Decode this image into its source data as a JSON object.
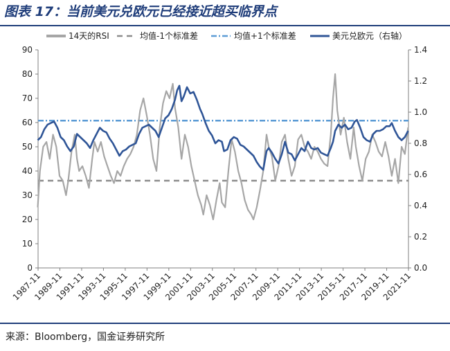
{
  "title": "图表 17：当前美元兑欧元已经接近超买临界点",
  "source": "来源：Bloomberg，国金证券研究所",
  "colors": {
    "rsi": "#a6a6a6",
    "mean_minus": "#8c8c8c",
    "mean_plus": "#5b9bd5",
    "usdeur": "#2f5597",
    "rule": "#1f3d7a"
  },
  "chart_data": {
    "type": "line",
    "x_tick_labels": [
      "1987-11",
      "1989-11",
      "1991-11",
      "1993-11",
      "1995-11",
      "1997-11",
      "1999-11",
      "2001-11",
      "2003-11",
      "2005-11",
      "2007-11",
      "2009-11",
      "2011-11",
      "2013-11",
      "2015-11",
      "2017-11",
      "2019-11",
      "2021-11"
    ],
    "x_range": [
      1987.83,
      2021.83
    ],
    "y_left": {
      "min": 0,
      "max": 90,
      "ticks": [
        0,
        10,
        20,
        30,
        40,
        50,
        60,
        70,
        80,
        90
      ]
    },
    "y_right": {
      "min": 0.0,
      "max": 1.4,
      "ticks": [
        "0.0",
        "0.2",
        "0.4",
        "0.6",
        "0.8",
        "1.0",
        "1.2",
        "1.4"
      ]
    },
    "legend": {
      "rsi": "14天的RSI",
      "mean_minus": "均值-1个标准差",
      "mean_plus": "均值+1个标准差",
      "usdeur": "美元兑欧元（右轴）"
    },
    "series": [
      {
        "name": "14天的RSI",
        "axis": "left",
        "points": [
          [
            1987.8,
            25
          ],
          [
            1988.0,
            40
          ],
          [
            1988.3,
            50
          ],
          [
            1988.6,
            52
          ],
          [
            1988.9,
            45
          ],
          [
            1989.2,
            55
          ],
          [
            1989.5,
            50
          ],
          [
            1989.8,
            38
          ],
          [
            1990.1,
            36
          ],
          [
            1990.4,
            30
          ],
          [
            1990.6,
            36
          ],
          [
            1990.9,
            48
          ],
          [
            1991.2,
            55
          ],
          [
            1991.4,
            45
          ],
          [
            1991.6,
            40
          ],
          [
            1991.9,
            42
          ],
          [
            1992.2,
            38
          ],
          [
            1992.5,
            33
          ],
          [
            1992.8,
            45
          ],
          [
            1993.0,
            52
          ],
          [
            1993.3,
            48
          ],
          [
            1993.6,
            52
          ],
          [
            1993.9,
            46
          ],
          [
            1994.2,
            42
          ],
          [
            1994.5,
            38
          ],
          [
            1994.8,
            35
          ],
          [
            1995.1,
            40
          ],
          [
            1995.4,
            38
          ],
          [
            1995.7,
            42
          ],
          [
            1996.0,
            45
          ],
          [
            1996.3,
            47
          ],
          [
            1996.6,
            50
          ],
          [
            1996.9,
            55
          ],
          [
            1997.2,
            65
          ],
          [
            1997.5,
            70
          ],
          [
            1997.8,
            63
          ],
          [
            1998.1,
            55
          ],
          [
            1998.4,
            45
          ],
          [
            1998.7,
            40
          ],
          [
            1999.0,
            58
          ],
          [
            1999.3,
            68
          ],
          [
            1999.6,
            73
          ],
          [
            1999.9,
            70
          ],
          [
            2000.2,
            76
          ],
          [
            2000.4,
            66
          ],
          [
            2000.7,
            58
          ],
          [
            2001.0,
            45
          ],
          [
            2001.3,
            55
          ],
          [
            2001.6,
            50
          ],
          [
            2001.9,
            42
          ],
          [
            2002.2,
            36
          ],
          [
            2002.5,
            30
          ],
          [
            2002.8,
            26
          ],
          [
            2003.0,
            22
          ],
          [
            2003.3,
            30
          ],
          [
            2003.6,
            26
          ],
          [
            2003.9,
            20
          ],
          [
            2004.2,
            28
          ],
          [
            2004.5,
            35
          ],
          [
            2004.7,
            27
          ],
          [
            2005.0,
            25
          ],
          [
            2005.3,
            40
          ],
          [
            2005.6,
            53
          ],
          [
            2005.9,
            48
          ],
          [
            2006.2,
            40
          ],
          [
            2006.5,
            35
          ],
          [
            2006.8,
            28
          ],
          [
            2007.1,
            24
          ],
          [
            2007.4,
            22
          ],
          [
            2007.6,
            20
          ],
          [
            2007.9,
            25
          ],
          [
            2008.2,
            32
          ],
          [
            2008.5,
            40
          ],
          [
            2008.8,
            55
          ],
          [
            2009.0,
            50
          ],
          [
            2009.3,
            46
          ],
          [
            2009.6,
            36
          ],
          [
            2009.9,
            42
          ],
          [
            2010.2,
            52
          ],
          [
            2010.5,
            55
          ],
          [
            2010.8,
            45
          ],
          [
            2011.1,
            38
          ],
          [
            2011.4,
            42
          ],
          [
            2011.7,
            53
          ],
          [
            2012.0,
            55
          ],
          [
            2012.3,
            50
          ],
          [
            2012.6,
            48
          ],
          [
            2012.9,
            45
          ],
          [
            2013.2,
            50
          ],
          [
            2013.5,
            48
          ],
          [
            2013.8,
            45
          ],
          [
            2014.1,
            43
          ],
          [
            2014.4,
            42
          ],
          [
            2014.7,
            55
          ],
          [
            2014.9,
            70
          ],
          [
            2015.1,
            80
          ],
          [
            2015.3,
            65
          ],
          [
            2015.6,
            55
          ],
          [
            2015.9,
            62
          ],
          [
            2016.2,
            52
          ],
          [
            2016.5,
            45
          ],
          [
            2016.8,
            58
          ],
          [
            2017.0,
            50
          ],
          [
            2017.3,
            42
          ],
          [
            2017.6,
            36
          ],
          [
            2017.9,
            45
          ],
          [
            2018.2,
            48
          ],
          [
            2018.5,
            55
          ],
          [
            2018.8,
            52
          ],
          [
            2019.1,
            48
          ],
          [
            2019.4,
            46
          ],
          [
            2019.7,
            52
          ],
          [
            2020.0,
            46
          ],
          [
            2020.3,
            38
          ],
          [
            2020.6,
            45
          ],
          [
            2020.9,
            35
          ],
          [
            2021.2,
            50
          ],
          [
            2021.5,
            47
          ],
          [
            2021.8,
            58
          ]
        ]
      },
      {
        "name": "均值-1个标准差",
        "axis": "left",
        "value": 36
      },
      {
        "name": "均值+1个标准差",
        "axis": "left",
        "value": 60.8
      },
      {
        "name": "美元兑欧元（右轴）",
        "axis": "right",
        "points": [
          [
            1987.8,
            0.82
          ],
          [
            1988.1,
            0.84
          ],
          [
            1988.4,
            0.89
          ],
          [
            1988.7,
            0.92
          ],
          [
            1989.0,
            0.93
          ],
          [
            1989.3,
            0.94
          ],
          [
            1989.6,
            0.9
          ],
          [
            1989.9,
            0.84
          ],
          [
            1990.2,
            0.82
          ],
          [
            1990.5,
            0.78
          ],
          [
            1990.8,
            0.75
          ],
          [
            1991.1,
            0.78
          ],
          [
            1991.4,
            0.86
          ],
          [
            1991.7,
            0.84
          ],
          [
            1992.0,
            0.82
          ],
          [
            1992.3,
            0.8
          ],
          [
            1992.6,
            0.77
          ],
          [
            1992.9,
            0.82
          ],
          [
            1993.2,
            0.86
          ],
          [
            1993.5,
            0.9
          ],
          [
            1993.8,
            0.88
          ],
          [
            1994.1,
            0.87
          ],
          [
            1994.4,
            0.83
          ],
          [
            1994.7,
            0.8
          ],
          [
            1995.0,
            0.76
          ],
          [
            1995.3,
            0.72
          ],
          [
            1995.6,
            0.75
          ],
          [
            1995.9,
            0.76
          ],
          [
            1996.2,
            0.78
          ],
          [
            1996.5,
            0.79
          ],
          [
            1996.8,
            0.8
          ],
          [
            1997.1,
            0.86
          ],
          [
            1997.4,
            0.9
          ],
          [
            1997.7,
            0.91
          ],
          [
            1998.0,
            0.92
          ],
          [
            1998.3,
            0.9
          ],
          [
            1998.6,
            0.88
          ],
          [
            1998.9,
            0.84
          ],
          [
            1999.2,
            0.9
          ],
          [
            1999.5,
            0.96
          ],
          [
            1999.8,
            0.98
          ],
          [
            2000.1,
            1.02
          ],
          [
            2000.4,
            1.08
          ],
          [
            2000.6,
            1.14
          ],
          [
            2000.8,
            1.17
          ],
          [
            2001.0,
            1.07
          ],
          [
            2001.2,
            1.1
          ],
          [
            2001.5,
            1.16
          ],
          [
            2001.8,
            1.12
          ],
          [
            2002.1,
            1.13
          ],
          [
            2002.4,
            1.08
          ],
          [
            2002.7,
            1.02
          ],
          [
            2002.9,
            0.99
          ],
          [
            2003.2,
            0.93
          ],
          [
            2003.5,
            0.88
          ],
          [
            2003.8,
            0.85
          ],
          [
            2004.1,
            0.8
          ],
          [
            2004.4,
            0.82
          ],
          [
            2004.7,
            0.81
          ],
          [
            2004.9,
            0.75
          ],
          [
            2005.2,
            0.76
          ],
          [
            2005.5,
            0.82
          ],
          [
            2005.8,
            0.84
          ],
          [
            2006.1,
            0.83
          ],
          [
            2006.4,
            0.79
          ],
          [
            2006.7,
            0.78
          ],
          [
            2007.0,
            0.76
          ],
          [
            2007.3,
            0.74
          ],
          [
            2007.6,
            0.72
          ],
          [
            2007.9,
            0.68
          ],
          [
            2008.2,
            0.65
          ],
          [
            2008.5,
            0.63
          ],
          [
            2008.8,
            0.75
          ],
          [
            2009.0,
            0.77
          ],
          [
            2009.3,
            0.74
          ],
          [
            2009.6,
            0.7
          ],
          [
            2009.9,
            0.67
          ],
          [
            2010.2,
            0.73
          ],
          [
            2010.5,
            0.81
          ],
          [
            2010.8,
            0.74
          ],
          [
            2011.1,
            0.73
          ],
          [
            2011.4,
            0.69
          ],
          [
            2011.7,
            0.73
          ],
          [
            2012.0,
            0.77
          ],
          [
            2012.3,
            0.75
          ],
          [
            2012.6,
            0.81
          ],
          [
            2012.9,
            0.77
          ],
          [
            2013.2,
            0.76
          ],
          [
            2013.5,
            0.77
          ],
          [
            2013.8,
            0.74
          ],
          [
            2014.1,
            0.73
          ],
          [
            2014.4,
            0.72
          ],
          [
            2014.7,
            0.77
          ],
          [
            2014.9,
            0.81
          ],
          [
            2015.1,
            0.88
          ],
          [
            2015.4,
            0.92
          ],
          [
            2015.7,
            0.9
          ],
          [
            2016.0,
            0.92
          ],
          [
            2016.3,
            0.89
          ],
          [
            2016.6,
            0.9
          ],
          [
            2016.9,
            0.94
          ],
          [
            2017.1,
            0.95
          ],
          [
            2017.4,
            0.9
          ],
          [
            2017.7,
            0.84
          ],
          [
            2018.0,
            0.82
          ],
          [
            2018.3,
            0.81
          ],
          [
            2018.6,
            0.86
          ],
          [
            2018.9,
            0.88
          ],
          [
            2019.2,
            0.88
          ],
          [
            2019.5,
            0.89
          ],
          [
            2019.8,
            0.91
          ],
          [
            2020.1,
            0.91
          ],
          [
            2020.3,
            0.93
          ],
          [
            2020.6,
            0.88
          ],
          [
            2020.9,
            0.84
          ],
          [
            2021.2,
            0.82
          ],
          [
            2021.5,
            0.84
          ],
          [
            2021.8,
            0.88
          ]
        ]
      }
    ]
  }
}
